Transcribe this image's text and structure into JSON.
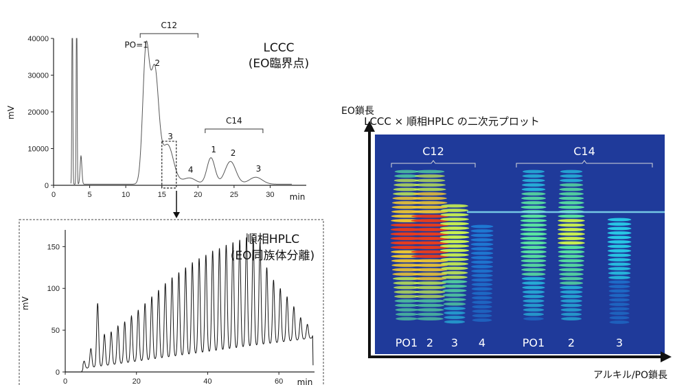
{
  "chart_data": [
    {
      "type": "line",
      "panel": "top-left",
      "title": "LCCC",
      "subtitle": "(EO臨界点)",
      "xlabel": "min",
      "ylabel": "mV",
      "xlim": [
        0,
        35
      ],
      "ylim": [
        0,
        40000
      ],
      "xticks": [
        "0",
        "5",
        "10",
        "15",
        "20",
        "25",
        "30"
      ],
      "yticks": [
        "0",
        "10000",
        "20000",
        "30000",
        "40000"
      ],
      "groups": [
        {
          "label": "C12",
          "x_range": [
            12,
            20
          ]
        },
        {
          "label": "C14",
          "x_range": [
            21,
            29
          ]
        }
      ],
      "peaks": [
        {
          "label": "PO=1",
          "x": 12.8,
          "y": 36000
        },
        {
          "label": "2",
          "x": 14.0,
          "y": 31000
        },
        {
          "label": "3",
          "x": 15.8,
          "y": 11000
        },
        {
          "label": "4",
          "x": 18.8,
          "y": 2000
        },
        {
          "label": "1",
          "x": 21.8,
          "y": 7500
        },
        {
          "label": "2",
          "x": 24.5,
          "y": 6500
        },
        {
          "label": "3",
          "x": 28.0,
          "y": 2200
        }
      ],
      "solvent_peaks": [
        {
          "x": 2.6,
          "y": 40000
        },
        {
          "x": 3.2,
          "y": 40000
        },
        {
          "x": 3.8,
          "y": 5500
        }
      ],
      "selection_box": {
        "x_range": [
          15,
          17
        ],
        "y_range": [
          0,
          12000
        ]
      }
    },
    {
      "type": "line",
      "panel": "bottom-left",
      "title": "順相HPLC",
      "subtitle": "(EO同族体分離)",
      "xlabel": "min",
      "ylabel": "mV",
      "xlim": [
        0,
        70
      ],
      "ylim": [
        0,
        170
      ],
      "xticks": [
        "0",
        "20",
        "40",
        "60"
      ],
      "yticks": [
        "0",
        "50",
        "100",
        "150"
      ],
      "oligomer_peaks": {
        "x_start": 5.3,
        "spacing": 1.9,
        "heights": [
          13,
          28,
          82,
          45,
          48,
          55,
          60,
          67,
          74,
          82,
          90,
          98,
          106,
          113,
          119,
          125,
          131,
          136,
          140,
          145,
          148,
          152,
          155,
          158,
          161,
          160,
          155,
          125,
          110,
          100,
          90,
          78,
          65,
          57,
          50,
          48,
          46
        ],
        "baseline_start": 4,
        "baseline_end": 43
      }
    },
    {
      "type": "heatmap",
      "panel": "right",
      "title": "LCCC × 順相HPLC の二次元プロット",
      "xlabel": "アルキル/PO鎖長",
      "ylabel": "EO鎖長",
      "groups": [
        {
          "label": "C12",
          "columns": [
            "PO1",
            "2",
            "3",
            "4"
          ]
        },
        {
          "label": "C14",
          "columns": [
            "PO1",
            "2",
            "3"
          ]
        }
      ],
      "column_labels": [
        "PO1",
        "2",
        "3",
        "4",
        "PO1",
        "2",
        "3"
      ],
      "column_intensity": [
        0.95,
        1.0,
        0.75,
        0.25,
        0.55,
        0.6,
        0.35
      ],
      "colormap": [
        "#1e3ea0",
        "#1e78d2",
        "#28c8e6",
        "#5ae6a0",
        "#c8f050",
        "#f0c832",
        "#e63c1e"
      ]
    }
  ]
}
